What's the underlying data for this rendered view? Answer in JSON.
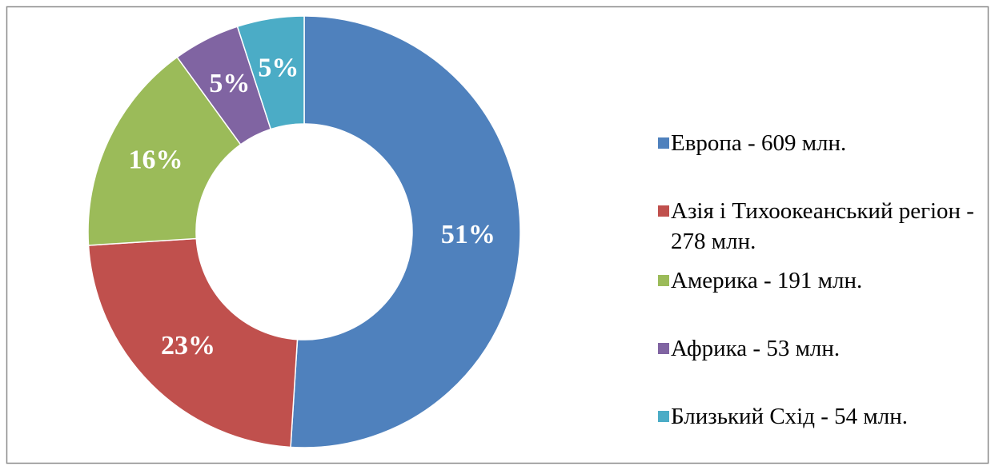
{
  "chart_data": {
    "type": "donut",
    "categories": [
      "Европа - 609 млн.",
      "Азія і Тихоокеанський регіон - 278 млн.",
      "Америка - 191 млн.",
      "Африка - 53 млн.",
      "Близький Схід - 54 млн."
    ],
    "values": [
      51,
      23,
      16,
      5,
      5
    ],
    "value_labels": [
      "51%",
      "23%",
      "16%",
      "5%",
      "5%"
    ],
    "colors": [
      "#4f81bd",
      "#c0504d",
      "#9bbb59",
      "#8064a2",
      "#4bacc6"
    ],
    "legend": "right"
  }
}
